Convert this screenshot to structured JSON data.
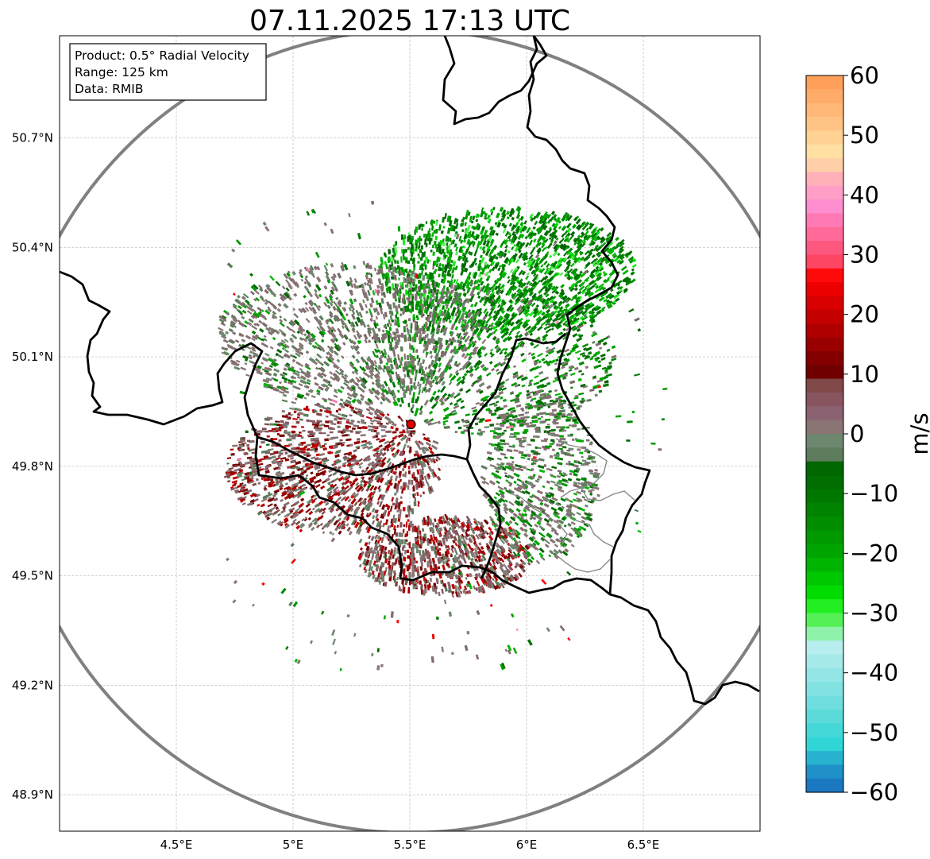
{
  "title": "07.11.2025 17:13 UTC",
  "info_box": {
    "product": "Product: 0.5° Radial Velocity",
    "range": "Range: 125 km",
    "data": "Data: RMIB"
  },
  "map": {
    "lon_range": [
      4.0,
      7.0
    ],
    "lat_range": [
      48.8,
      50.98
    ],
    "lon_ticks": [
      {
        "value": 4.5,
        "label": "4.5°E"
      },
      {
        "value": 5.0,
        "label": "5°E"
      },
      {
        "value": 5.5,
        "label": "5.5°E"
      },
      {
        "value": 6.0,
        "label": "6°E"
      },
      {
        "value": 6.5,
        "label": "6.5°E"
      }
    ],
    "lat_ticks": [
      {
        "value": 50.7,
        "label": "50.7°N"
      },
      {
        "value": 50.4,
        "label": "50.4°N"
      },
      {
        "value": 50.1,
        "label": "50.1°N"
      },
      {
        "value": 49.8,
        "label": "49.8°N"
      },
      {
        "value": 49.5,
        "label": "49.5°N"
      },
      {
        "value": 49.2,
        "label": "49.2°N"
      },
      {
        "value": 48.9,
        "label": "48.9°N"
      }
    ],
    "gridlines": true,
    "radar_site": {
      "lon": 5.505,
      "lat": 49.915,
      "color": "#e00000"
    },
    "range_ring_color": "#808080"
  },
  "colorbar": {
    "label": "m/s",
    "vmin": -60,
    "vmax": 60,
    "ticks": [
      {
        "value": 60,
        "label": "60"
      },
      {
        "value": 50,
        "label": "50"
      },
      {
        "value": 40,
        "label": "40"
      },
      {
        "value": 30,
        "label": "30"
      },
      {
        "value": 20,
        "label": "20"
      },
      {
        "value": 10,
        "label": "10"
      },
      {
        "value": 0,
        "label": "0"
      },
      {
        "value": -10,
        "label": "−10"
      },
      {
        "value": -20,
        "label": "−20"
      },
      {
        "value": -30,
        "label": "−30"
      },
      {
        "value": -40,
        "label": "−40"
      },
      {
        "value": -50,
        "label": "−50"
      },
      {
        "value": -60,
        "label": "−60"
      }
    ],
    "colors_top_to_bottom": [
      "#ffa05a",
      "#ffac6a",
      "#ffb877",
      "#ffc485",
      "#ffd193",
      "#ffdfa2",
      "#ffd0a8",
      "#ffb0b8",
      "#ff9fc8",
      "#ff8ed0",
      "#ff7ab4",
      "#ff6a98",
      "#ff587e",
      "#ff4564",
      "#ff0a0a",
      "#ec0000",
      "#d80000",
      "#c40000",
      "#b00000",
      "#9a0000",
      "#840000",
      "#700000",
      "#804848",
      "#885560",
      "#8a6272",
      "#8a7474",
      "#6e8870",
      "#5c7c5c",
      "#006600",
      "#006e00",
      "#007800",
      "#008300",
      "#008e00",
      "#009900",
      "#00a500",
      "#00b400",
      "#00c800",
      "#00dc00",
      "#22ee22",
      "#55f055",
      "#8ff2aa",
      "#b8eeee",
      "#a6eaea",
      "#94e6e6",
      "#82e2e2",
      "#70dede",
      "#5cdada",
      "#44d8d8",
      "#30d6d6",
      "#28b4d0",
      "#2090c8",
      "#1a78c0"
    ]
  }
}
